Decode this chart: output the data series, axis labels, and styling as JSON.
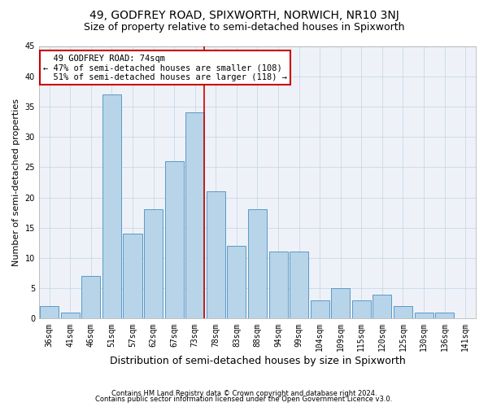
{
  "title": "49, GODFREY ROAD, SPIXWORTH, NORWICH, NR10 3NJ",
  "subtitle": "Size of property relative to semi-detached houses in Spixworth",
  "xlabel": "Distribution of semi-detached houses by size in Spixworth",
  "ylabel": "Number of semi-detached properties",
  "categories": [
    "36sqm",
    "41sqm",
    "46sqm",
    "51sqm",
    "57sqm",
    "62sqm",
    "67sqm",
    "73sqm",
    "78sqm",
    "83sqm",
    "88sqm",
    "94sqm",
    "99sqm",
    "104sqm",
    "109sqm",
    "115sqm",
    "120sqm",
    "125sqm",
    "130sqm",
    "136sqm",
    "141sqm"
  ],
  "values": [
    2,
    1,
    7,
    37,
    14,
    18,
    26,
    34,
    21,
    12,
    18,
    11,
    11,
    3,
    5,
    3,
    4,
    2,
    1,
    1,
    0
  ],
  "bar_color": "#b8d4e8",
  "bar_edge_color": "#5a9ac8",
  "highlight_bin_index": 7,
  "highlight_label": "49 GODFREY ROAD: 74sqm",
  "smaller_pct": "47% of semi-detached houses are smaller (108)",
  "larger_pct": "51% of semi-detached houses are larger (118)",
  "annotation_box_color": "#cc0000",
  "vline_color": "#cc0000",
  "grid_color": "#c8d8e8",
  "background_color": "#eef2f8",
  "footnote1": "Contains HM Land Registry data © Crown copyright and database right 2024.",
  "footnote2": "Contains public sector information licensed under the Open Government Licence v3.0.",
  "ylim": [
    0,
    45
  ],
  "title_fontsize": 10,
  "subtitle_fontsize": 9,
  "annotation_fontsize": 7.5,
  "ylabel_fontsize": 8,
  "xlabel_fontsize": 9,
  "tick_fontsize": 7,
  "footnote_fontsize": 6
}
